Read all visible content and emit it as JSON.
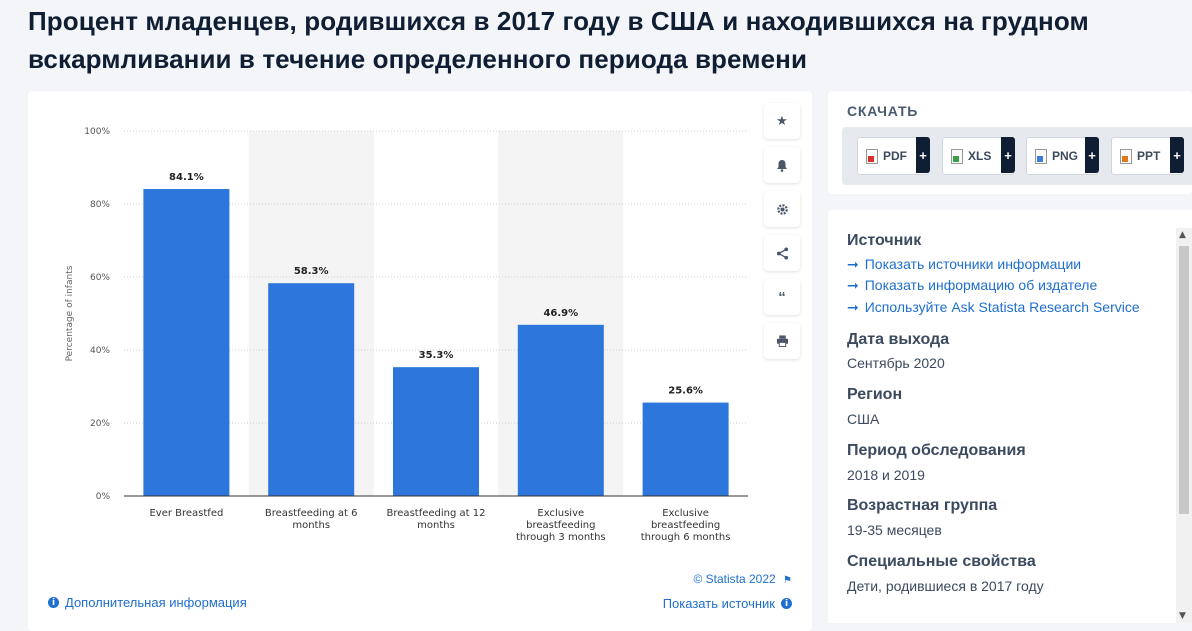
{
  "page": {
    "title": "Процент младенцев, родившихся в 2017 году в США и находившихся на грудном вскармливании в течение определенного периода времени"
  },
  "chart_data": {
    "type": "bar",
    "categories": [
      "Ever Breastfed",
      "Breastfeeding at 6 months",
      "Breastfeeding at 12 months",
      "Exclusive breastfeeding through 3 months",
      "Exclusive breastfeeding through 6 months"
    ],
    "category_lines": [
      [
        "Ever Breastfed"
      ],
      [
        "Breastfeeding at 6",
        "months"
      ],
      [
        "Breastfeeding at 12",
        "months"
      ],
      [
        "Exclusive",
        "breastfeeding",
        "through 3 months"
      ],
      [
        "Exclusive",
        "breastfeeding",
        "through 6 months"
      ]
    ],
    "values": [
      84.1,
      58.3,
      35.3,
      46.9,
      25.6
    ],
    "value_labels": [
      "84.1%",
      "58.3%",
      "35.3%",
      "46.9%",
      "25.6%"
    ],
    "ylabel": "Percentage of infants",
    "ylim": [
      0,
      100
    ],
    "yticks": [
      0,
      20,
      40,
      60,
      80,
      100
    ],
    "ytick_labels": [
      "0%",
      "20%",
      "40%",
      "60%",
      "80%",
      "100%"
    ],
    "grid": true,
    "bar_color": "#2d76db",
    "shaded_bands": [
      1,
      3
    ]
  },
  "chart_footer": {
    "credit": "© Statista 2022",
    "more_info": "Дополнительная информация",
    "show_source": "Показать источник"
  },
  "toolbar": {
    "icons": [
      "star-icon",
      "bell-icon",
      "gear-icon",
      "share-icon",
      "quote-icon",
      "print-icon"
    ]
  },
  "download": {
    "title": "СКАЧАТЬ",
    "formats": [
      "PDF",
      "XLS",
      "PNG",
      "PPT"
    ]
  },
  "meta": {
    "source_heading": "Источник",
    "source_links": [
      "Показать источники информации",
      "Показать информацию об издателе",
      "Используйте Ask Statista Research Service"
    ],
    "release_heading": "Дата выхода",
    "release_value": "Сентябрь 2020",
    "region_heading": "Регион",
    "region_value": "США",
    "period_heading": "Период обследования",
    "period_value": "2018 и 2019",
    "age_heading": "Возрастная группа",
    "age_value": "19-35 месяцев",
    "special_heading": "Специальные свойства",
    "special_value": "Дети, родившиеся в 2017 году"
  },
  "colors": {
    "accent": "#1f6fcf",
    "bar": "#2d76db",
    "title": "#0f1e33"
  }
}
